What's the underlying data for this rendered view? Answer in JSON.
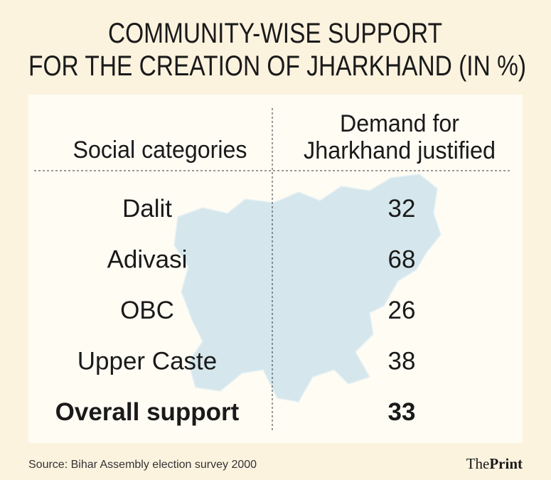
{
  "title": [
    "COMMUNITY-WISE SUPPORT",
    "FOR THE CREATION OF JHARKHAND (IN %)"
  ],
  "table": {
    "header": [
      "Social categories",
      [
        "Demand for",
        "Jharkhand justified"
      ]
    ],
    "rows": [
      [
        "Dalit",
        "32"
      ],
      [
        "Adivasi",
        "68"
      ],
      [
        "OBC",
        "26"
      ],
      [
        "Upper Caste",
        "38"
      ],
      [
        "Overall support",
        "33"
      ]
    ]
  },
  "source": "Source: Bihar Assembly election survey 2000",
  "logo": [
    "The",
    "Print"
  ]
}
